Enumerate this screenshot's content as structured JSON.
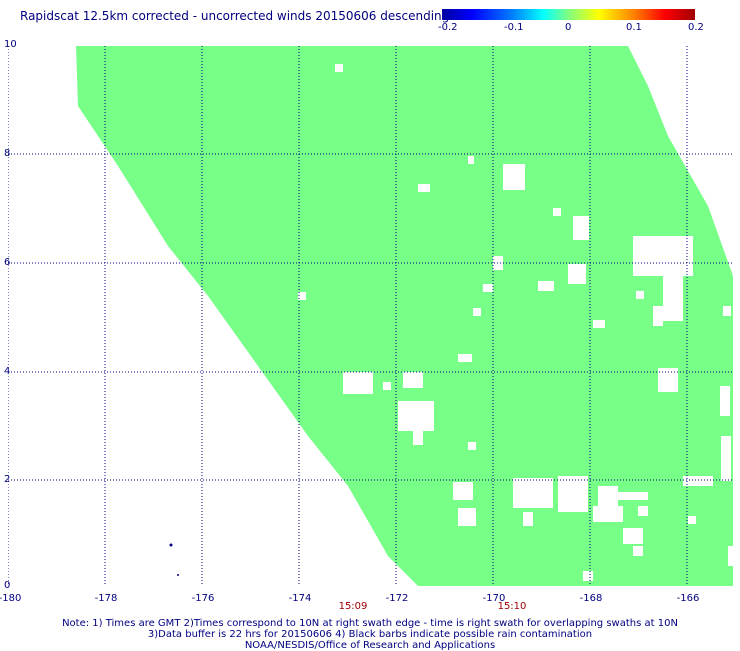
{
  "title": "Rapidscat 12.5km corrected - uncorrected winds 20150606 descending",
  "colorbar": {
    "labels": [
      "-0.2",
      "-0.1",
      "0",
      "0.1",
      "0.2"
    ],
    "range": [
      -0.2,
      0.2
    ]
  },
  "axes": {
    "y_ticks": [
      "10",
      "8",
      "6",
      "4",
      "2",
      "0"
    ],
    "x_ticks": [
      "-180",
      "-178",
      "-176",
      "-174",
      "-172",
      "-170",
      "-168",
      "-166"
    ]
  },
  "times": [
    "15:09",
    "15:10"
  ],
  "notes": [
    "Note: 1) Times are GMT 2)Times correspond to 10N at right swath edge - time is right swath for overlapping swaths at 10N",
    "3)Data buffer is 22 hrs for 20150606 4) Black barbs indicate possible rain contamination",
    "NOAA/NESDIS/Office of Research and Applications"
  ],
  "colors": {
    "swath_fill": "#77ff88",
    "grid": "#000080",
    "text": "#000080",
    "time_text": "#a00000"
  }
}
